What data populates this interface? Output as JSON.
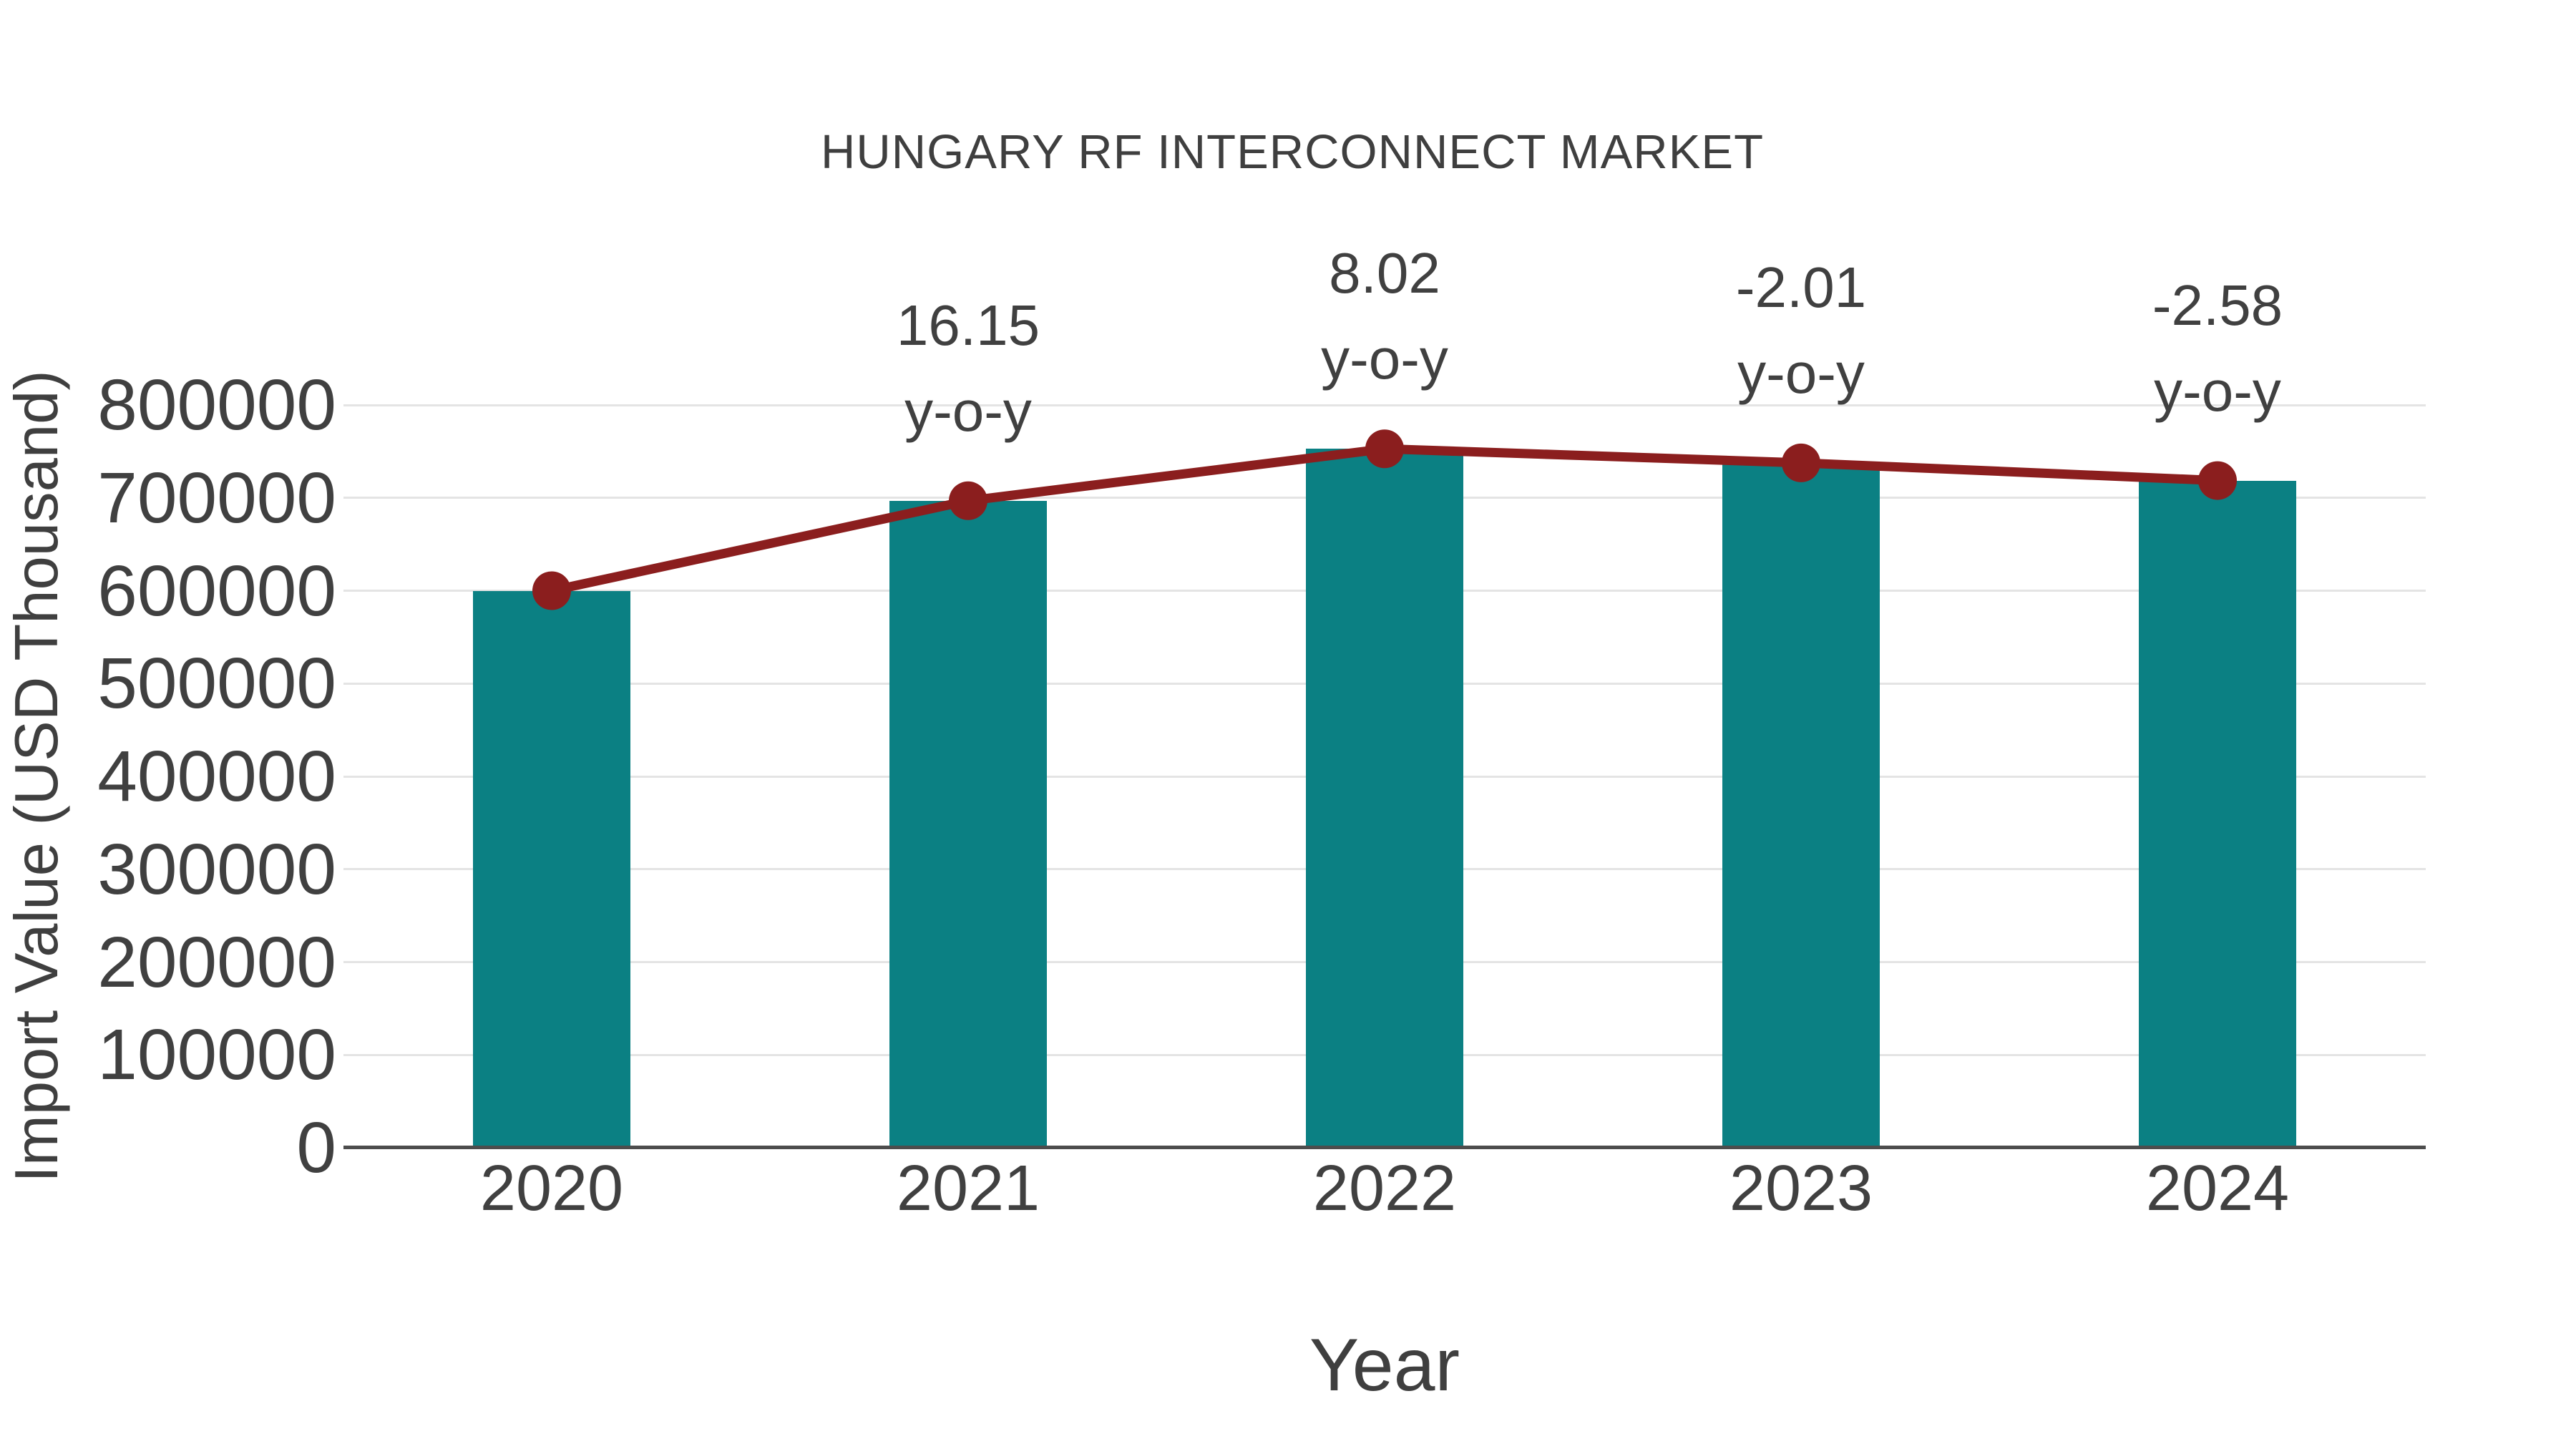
{
  "chart_data": {
    "type": "bar",
    "title": "HUNGARY RF INTERCONNECT MARKET",
    "xlabel": "Year",
    "ylabel": "Import Value (USD Thousand)",
    "categories": [
      "2020",
      "2021",
      "2022",
      "2023",
      "2024"
    ],
    "series": [
      {
        "name": "Import Value",
        "type": "bar",
        "values": [
          600000,
          696900,
          752790,
          737660,
          718630
        ]
      },
      {
        "name": "Import Value trend",
        "type": "line",
        "values": [
          600000,
          696900,
          752790,
          737660,
          718630
        ]
      }
    ],
    "annotations": [
      {
        "category": "2021",
        "line1": "16.15",
        "line2": "y-o-y"
      },
      {
        "category": "2022",
        "line1": "8.02",
        "line2": "y-o-y"
      },
      {
        "category": "2023",
        "line1": "-2.01",
        "line2": "y-o-y"
      },
      {
        "category": "2024",
        "line1": "-2.58",
        "line2": "y-o-y"
      }
    ],
    "ylim": [
      0,
      800000
    ],
    "ytick_step": 100000,
    "ytick_labels": [
      "0",
      "100000",
      "200000",
      "300000",
      "400000",
      "500000",
      "600000",
      "700000",
      "800000"
    ],
    "grid": "horizontal",
    "legend_position": "none",
    "colors": {
      "bar": "#0b8083",
      "line": "#8b1e1e",
      "marker": "#8b1e1e",
      "text": "#404040",
      "grid": "#e4e4e4",
      "axis": "#4d4d4d",
      "background": "#ffffff"
    }
  }
}
